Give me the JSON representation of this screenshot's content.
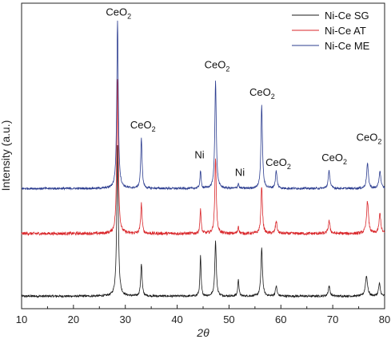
{
  "chart_data": {
    "type": "line",
    "title": "",
    "xlabel": "2θ",
    "ylabel": "Intensity (a.u.)",
    "xlim": [
      10,
      80
    ],
    "x_ticks": [
      10,
      20,
      30,
      40,
      50,
      60,
      70,
      80
    ],
    "y_ticks": [],
    "grid": false,
    "legend_position": "top-right",
    "series": [
      {
        "name": "Ni-Ce SG",
        "color": "#1a1a1a",
        "baseline": 0.05,
        "noise": 0.004,
        "peaks": [
          [
            28.5,
            0.6,
            0.18
          ],
          [
            33.1,
            0.13,
            0.16
          ],
          [
            44.5,
            0.16,
            0.13
          ],
          [
            47.4,
            0.22,
            0.17
          ],
          [
            51.8,
            0.07,
            0.13
          ],
          [
            56.3,
            0.19,
            0.18
          ],
          [
            59.1,
            0.04,
            0.18
          ],
          [
            69.3,
            0.04,
            0.2
          ],
          [
            76.5,
            0.08,
            0.25
          ],
          [
            79.0,
            0.05,
            0.2
          ]
        ]
      },
      {
        "name": "Ni-Ce AT",
        "color": "#d9262a",
        "baseline": 0.3,
        "noise": 0.006,
        "peaks": [
          [
            28.5,
            0.62,
            0.17
          ],
          [
            33.1,
            0.12,
            0.16
          ],
          [
            44.5,
            0.1,
            0.13
          ],
          [
            47.4,
            0.3,
            0.17
          ],
          [
            51.8,
            0.03,
            0.13
          ],
          [
            56.3,
            0.19,
            0.17
          ],
          [
            59.1,
            0.05,
            0.18
          ],
          [
            69.3,
            0.05,
            0.2
          ],
          [
            76.7,
            0.13,
            0.22
          ],
          [
            79.1,
            0.08,
            0.2
          ]
        ]
      },
      {
        "name": "Ni-Ce ME",
        "color": "#2b3c8f",
        "baseline": 0.48,
        "noise": 0.004,
        "peaks": [
          [
            28.5,
            0.67,
            0.17
          ],
          [
            33.1,
            0.2,
            0.16
          ],
          [
            44.5,
            0.07,
            0.13
          ],
          [
            47.4,
            0.43,
            0.17
          ],
          [
            51.8,
            0.02,
            0.13
          ],
          [
            56.3,
            0.33,
            0.17
          ],
          [
            59.1,
            0.07,
            0.18
          ],
          [
            69.3,
            0.07,
            0.2
          ],
          [
            76.7,
            0.1,
            0.2
          ],
          [
            79.1,
            0.07,
            0.2
          ]
        ]
      }
    ],
    "annotations": [
      {
        "text": "CeO2",
        "x": 28.7,
        "y": 1.17
      },
      {
        "text": "CeO2",
        "x": 33.4,
        "y": 0.72
      },
      {
        "text": "Ni",
        "x": 44.3,
        "y": 0.6
      },
      {
        "text": "CeO2",
        "x": 47.7,
        "y": 0.96
      },
      {
        "text": "Ni",
        "x": 52.1,
        "y": 0.53
      },
      {
        "text": "CeO2",
        "x": 56.4,
        "y": 0.85
      },
      {
        "text": "CeO2",
        "x": 59.5,
        "y": 0.57
      },
      {
        "text": "CeO2",
        "x": 70.3,
        "y": 0.59
      },
      {
        "text": "CeO2",
        "x": 77.0,
        "y": 0.67
      }
    ]
  }
}
